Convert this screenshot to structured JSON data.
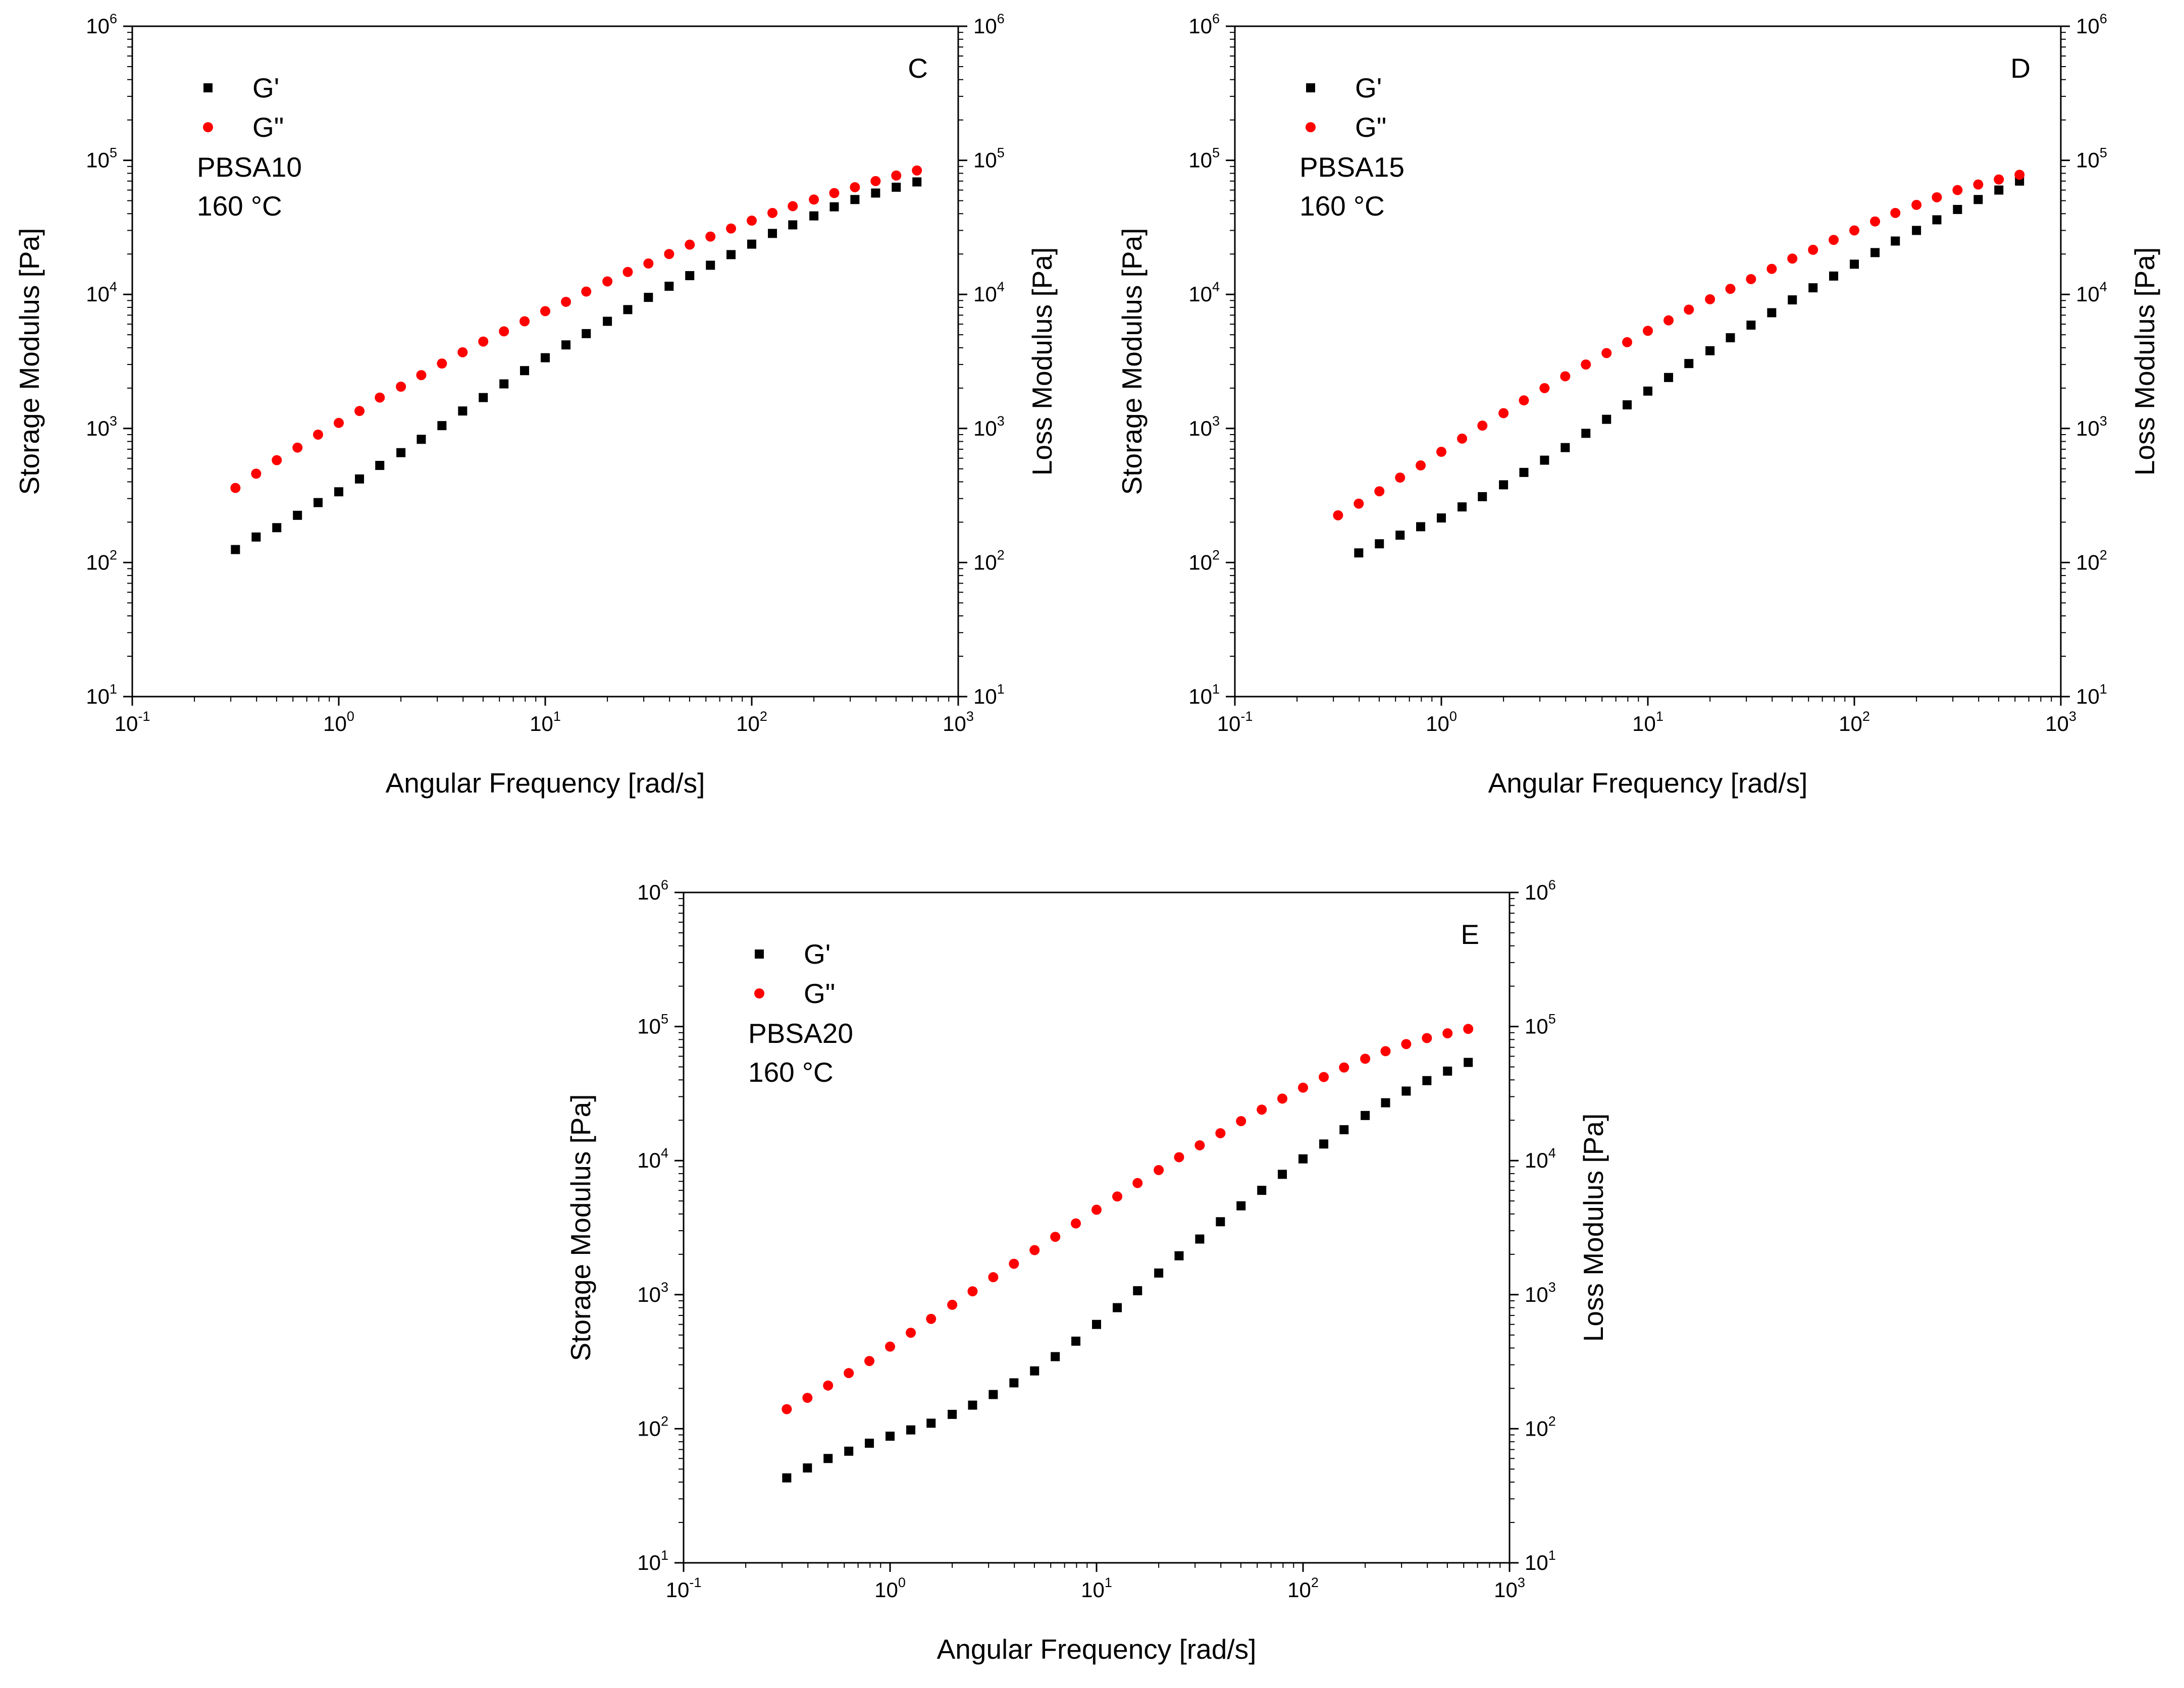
{
  "figure": {
    "x_axis_label": "Angular Frequency [rad/s]",
    "y_left_label": "Storage Modulus [Pa]",
    "y_right_label": "Loss Modulus [Pa]",
    "legend": [
      {
        "label": "G'",
        "marker": "square",
        "color": "#000000"
      },
      {
        "label": "G\"",
        "marker": "circle",
        "color": "#ff0000"
      }
    ]
  },
  "chart_data": [
    {
      "type": "scatter",
      "panel_label": "C",
      "sample": "PBSA10",
      "temperature": "160 °C",
      "xscale": "log",
      "yscale": "log",
      "xlim": [
        0.1,
        1000
      ],
      "ylim": [
        10,
        1000000
      ],
      "xticks": [
        {
          "base": "10",
          "exp": "-1"
        },
        {
          "base": "10",
          "exp": "0"
        },
        {
          "base": "10",
          "exp": "1"
        },
        {
          "base": "10",
          "exp": "2"
        },
        {
          "base": "10",
          "exp": "3"
        }
      ],
      "yticks": [
        {
          "base": "10",
          "exp": "1"
        },
        {
          "base": "10",
          "exp": "2"
        },
        {
          "base": "10",
          "exp": "3"
        },
        {
          "base": "10",
          "exp": "4"
        },
        {
          "base": "10",
          "exp": "5"
        },
        {
          "base": "10",
          "exp": "6"
        }
      ],
      "series": [
        {
          "name": "G'",
          "x": [
            0.316,
            0.398,
            0.501,
            0.631,
            0.794,
            1.0,
            1.26,
            1.58,
            2.0,
            2.51,
            3.16,
            3.98,
            5.01,
            6.31,
            7.94,
            10.0,
            12.6,
            15.8,
            20.0,
            25.1,
            31.6,
            39.8,
            50.1,
            63.1,
            79.4,
            100,
            126,
            158,
            200,
            251,
            316,
            398,
            501,
            631
          ],
          "y": [
            125,
            155,
            182,
            225,
            280,
            337,
            420,
            530,
            660,
            830,
            1050,
            1350,
            1700,
            2150,
            2700,
            3370,
            4200,
            5100,
            6300,
            7700,
            9500,
            11500,
            13800,
            16500,
            19800,
            23700,
            28500,
            33000,
            38500,
            45000,
            51000,
            57000,
            63000,
            69000
          ]
        },
        {
          "name": "G\"",
          "x": [
            0.316,
            0.398,
            0.501,
            0.631,
            0.794,
            1.0,
            1.26,
            1.58,
            2.0,
            2.51,
            3.16,
            3.98,
            5.01,
            6.31,
            7.94,
            10.0,
            12.6,
            15.8,
            20.0,
            25.1,
            31.6,
            39.8,
            50.1,
            63.1,
            79.4,
            100,
            126,
            158,
            200,
            251,
            316,
            398,
            501,
            631
          ],
          "y": [
            360,
            460,
            580,
            720,
            900,
            1100,
            1350,
            1700,
            2050,
            2500,
            3050,
            3700,
            4450,
            5300,
            6300,
            7500,
            8800,
            10500,
            12500,
            14700,
            17000,
            20000,
            23500,
            27000,
            31000,
            35500,
            40500,
            45500,
            51000,
            57000,
            63000,
            70000,
            77000,
            84000
          ]
        }
      ]
    },
    {
      "type": "scatter",
      "panel_label": "D",
      "sample": "PBSA15",
      "temperature": "160 °C",
      "xscale": "log",
      "yscale": "log",
      "xlim": [
        0.1,
        1000
      ],
      "ylim": [
        10,
        1000000
      ],
      "xticks": [
        {
          "base": "10",
          "exp": "-1"
        },
        {
          "base": "10",
          "exp": "0"
        },
        {
          "base": "10",
          "exp": "1"
        },
        {
          "base": "10",
          "exp": "2"
        },
        {
          "base": "10",
          "exp": "3"
        }
      ],
      "yticks": [
        {
          "base": "10",
          "exp": "1"
        },
        {
          "base": "10",
          "exp": "2"
        },
        {
          "base": "10",
          "exp": "3"
        },
        {
          "base": "10",
          "exp": "4"
        },
        {
          "base": "10",
          "exp": "5"
        },
        {
          "base": "10",
          "exp": "6"
        }
      ],
      "series": [
        {
          "name": "G'",
          "x": [
            0.398,
            0.501,
            0.631,
            0.794,
            1.0,
            1.26,
            1.58,
            2.0,
            2.51,
            3.16,
            3.98,
            5.01,
            6.31,
            7.94,
            10.0,
            12.6,
            15.8,
            20.0,
            25.1,
            31.6,
            39.8,
            50.1,
            63.1,
            79.4,
            100,
            126,
            158,
            200,
            251,
            316,
            398,
            501,
            631
          ],
          "y": [
            118,
            138,
            160,
            185,
            215,
            260,
            310,
            380,
            470,
            580,
            720,
            920,
            1170,
            1500,
            1900,
            2400,
            3050,
            3800,
            4750,
            5900,
            7300,
            9100,
            11200,
            13700,
            16800,
            20500,
            25000,
            30000,
            36000,
            43000,
            51000,
            60000,
            70000
          ]
        },
        {
          "name": "G\"",
          "x": [
            0.316,
            0.398,
            0.501,
            0.631,
            0.794,
            1.0,
            1.26,
            1.58,
            2.0,
            2.51,
            3.16,
            3.98,
            5.01,
            6.31,
            7.94,
            10.0,
            12.6,
            15.8,
            20.0,
            25.1,
            31.6,
            39.8,
            50.1,
            63.1,
            79.4,
            100,
            126,
            158,
            200,
            251,
            316,
            398,
            501,
            631
          ],
          "y": [
            225,
            275,
            340,
            430,
            530,
            670,
            840,
            1050,
            1300,
            1620,
            2000,
            2450,
            3000,
            3650,
            4400,
            5350,
            6400,
            7700,
            9200,
            11000,
            13000,
            15500,
            18500,
            21500,
            25500,
            30000,
            35000,
            40500,
            46500,
            53000,
            60000,
            66000,
            72000,
            78000
          ]
        }
      ]
    },
    {
      "type": "scatter",
      "panel_label": "E",
      "sample": "PBSA20",
      "temperature": "160 °C",
      "xscale": "log",
      "yscale": "log",
      "xlim": [
        0.1,
        1000
      ],
      "ylim": [
        10,
        1000000
      ],
      "xticks": [
        {
          "base": "10",
          "exp": "-1"
        },
        {
          "base": "10",
          "exp": "0"
        },
        {
          "base": "10",
          "exp": "1"
        },
        {
          "base": "10",
          "exp": "2"
        },
        {
          "base": "10",
          "exp": "3"
        }
      ],
      "yticks": [
        {
          "base": "10",
          "exp": "1"
        },
        {
          "base": "10",
          "exp": "2"
        },
        {
          "base": "10",
          "exp": "3"
        },
        {
          "base": "10",
          "exp": "4"
        },
        {
          "base": "10",
          "exp": "5"
        },
        {
          "base": "10",
          "exp": "6"
        }
      ],
      "series": [
        {
          "name": "G'",
          "x": [
            0.316,
            0.398,
            0.501,
            0.631,
            0.794,
            1.0,
            1.26,
            1.58,
            2.0,
            2.51,
            3.16,
            3.98,
            5.01,
            6.31,
            7.94,
            10.0,
            12.6,
            15.8,
            20.0,
            25.1,
            31.6,
            39.8,
            50.1,
            63.1,
            79.4,
            100,
            126,
            158,
            200,
            251,
            316,
            398,
            501,
            631
          ],
          "y": [
            43,
            51,
            60,
            68,
            78,
            88,
            98,
            110,
            128,
            150,
            180,
            220,
            270,
            345,
            450,
            600,
            800,
            1070,
            1450,
            1950,
            2600,
            3500,
            4600,
            6000,
            7900,
            10300,
            13300,
            17000,
            21700,
            27000,
            33000,
            39500,
            46500,
            54000
          ]
        },
        {
          "name": "G\"",
          "x": [
            0.316,
            0.398,
            0.501,
            0.631,
            0.794,
            1.0,
            1.26,
            1.58,
            2.0,
            2.51,
            3.16,
            3.98,
            5.01,
            6.31,
            7.94,
            10.0,
            12.6,
            15.8,
            20.0,
            25.1,
            31.6,
            39.8,
            50.1,
            63.1,
            79.4,
            100,
            126,
            158,
            200,
            251,
            316,
            398,
            501,
            631
          ],
          "y": [
            140,
            170,
            210,
            260,
            320,
            410,
            520,
            660,
            840,
            1060,
            1350,
            1700,
            2150,
            2700,
            3400,
            4300,
            5400,
            6800,
            8500,
            10600,
            13000,
            16000,
            19700,
            24000,
            29000,
            35000,
            42000,
            49500,
            57500,
            65500,
            74000,
            82000,
            89000,
            96000
          ]
        }
      ]
    }
  ]
}
